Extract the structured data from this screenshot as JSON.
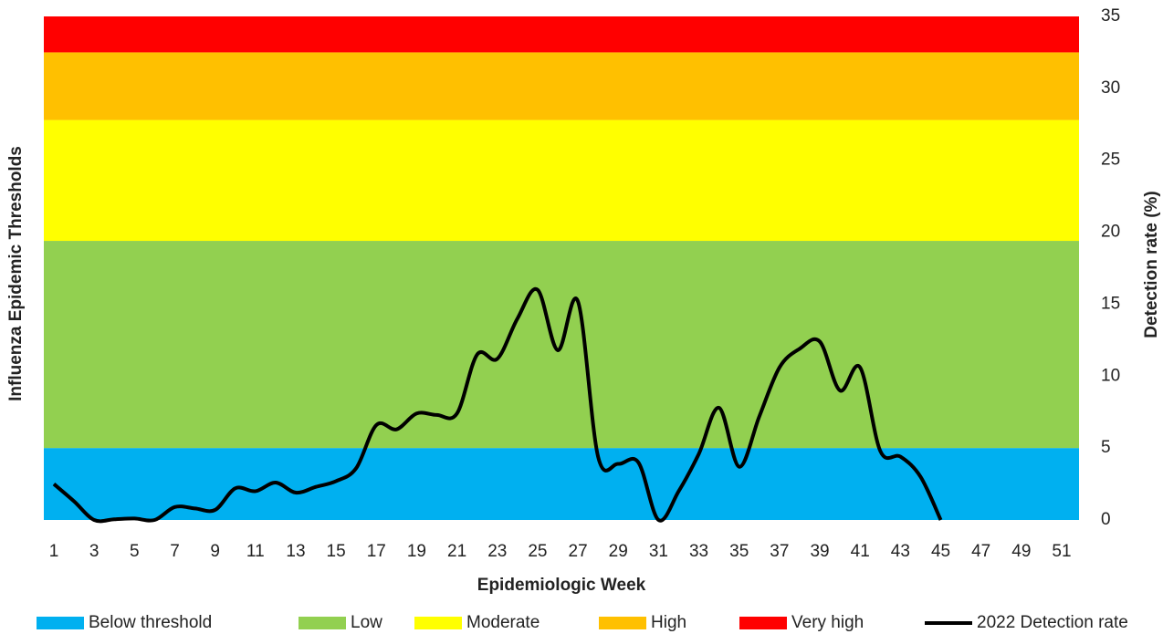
{
  "chart_data": {
    "type": "line",
    "x_title": "Epidemiologic Week",
    "y_title_left": "Influenza Epidemic Thresholds",
    "y_title": "Detection rate (%)",
    "y_axis_side": "right",
    "categories": [
      1,
      null,
      3,
      null,
      5,
      null,
      7,
      null,
      9,
      null,
      11,
      null,
      13,
      null,
      15,
      null,
      17,
      null,
      19,
      null,
      21,
      null,
      23,
      null,
      25,
      null,
      27,
      null,
      29,
      null,
      31,
      null,
      33,
      null,
      35,
      null,
      37,
      null,
      39,
      null,
      41,
      null,
      43,
      null,
      45,
      null,
      47,
      null,
      49,
      null,
      51,
      null
    ],
    "ylim": [
      0,
      35
    ],
    "yticks": [
      0,
      5,
      10,
      15,
      20,
      25,
      30,
      35
    ],
    "bands": [
      {
        "name": "Below threshold",
        "color": "#00b0f0",
        "from": 0,
        "to": 5
      },
      {
        "name": "Low",
        "color": "#92d050",
        "from": 5,
        "to": 19.4
      },
      {
        "name": "Moderate",
        "color": "#ffff00",
        "from": 19.4,
        "to": 27.8
      },
      {
        "name": "High",
        "color": "#ffc000",
        "from": 27.8,
        "to": 32.5
      },
      {
        "name": "Very high",
        "color": "#ff0000",
        "from": 32.5,
        "to": 35
      }
    ],
    "series": [
      {
        "name": "2022 Detection rate",
        "color": "#000000",
        "values": [
          2.5,
          1.3,
          0,
          0.05,
          0.1,
          0,
          0.9,
          0.8,
          0.7,
          2.2,
          2.0,
          2.6,
          1.9,
          2.3,
          2.7,
          3.6,
          6.6,
          6.3,
          7.4,
          7.3,
          7.4,
          11.5,
          11.2,
          14,
          16,
          11.8,
          15.2,
          4.4,
          3.9,
          4.0,
          0,
          2.0,
          4.6,
          7.8,
          3.7,
          7.2,
          10.6,
          11.9,
          12.4,
          9.0,
          10.6,
          4.8,
          4.4,
          3.0,
          0,
          null,
          null,
          null,
          null,
          null,
          null,
          null
        ]
      }
    ]
  }
}
